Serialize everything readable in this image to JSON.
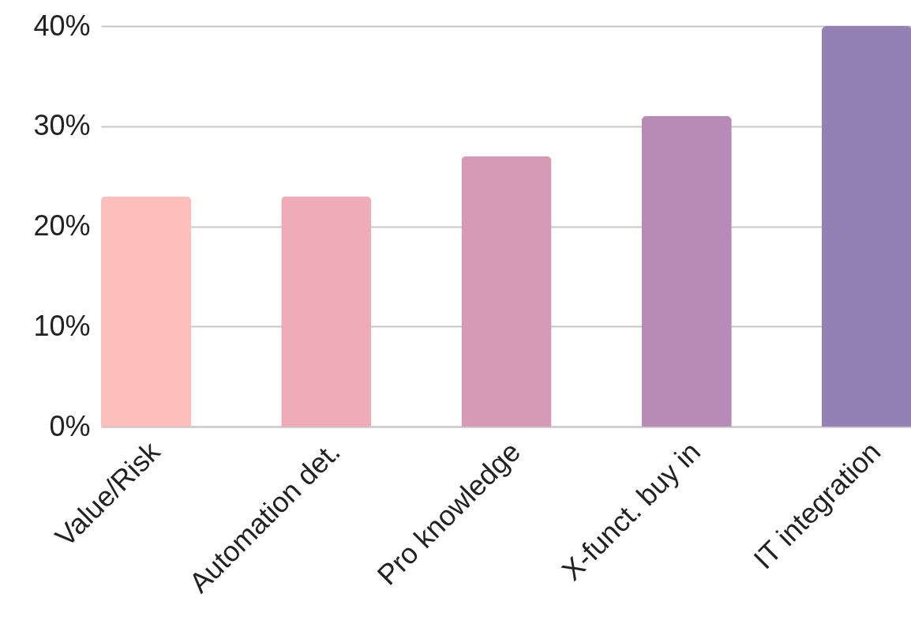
{
  "chart_data": {
    "type": "bar",
    "categories": [
      "Value/Risk",
      "Automation det.",
      "Pro knowledge",
      "X-funct. buy in",
      "IT integration"
    ],
    "values": [
      23,
      23,
      27,
      31,
      40
    ],
    "colors": [
      "#fcbfbb",
      "#efacb8",
      "#d69ab7",
      "#b88bb6",
      "#9580b6"
    ],
    "ylim": [
      0,
      40
    ],
    "yticks": [
      {
        "value": 0,
        "label": "0%"
      },
      {
        "value": 10,
        "label": "10%"
      },
      {
        "value": 20,
        "label": "20%"
      },
      {
        "value": 30,
        "label": "30%"
      },
      {
        "value": 40,
        "label": "40%"
      }
    ],
    "grid": "y"
  }
}
